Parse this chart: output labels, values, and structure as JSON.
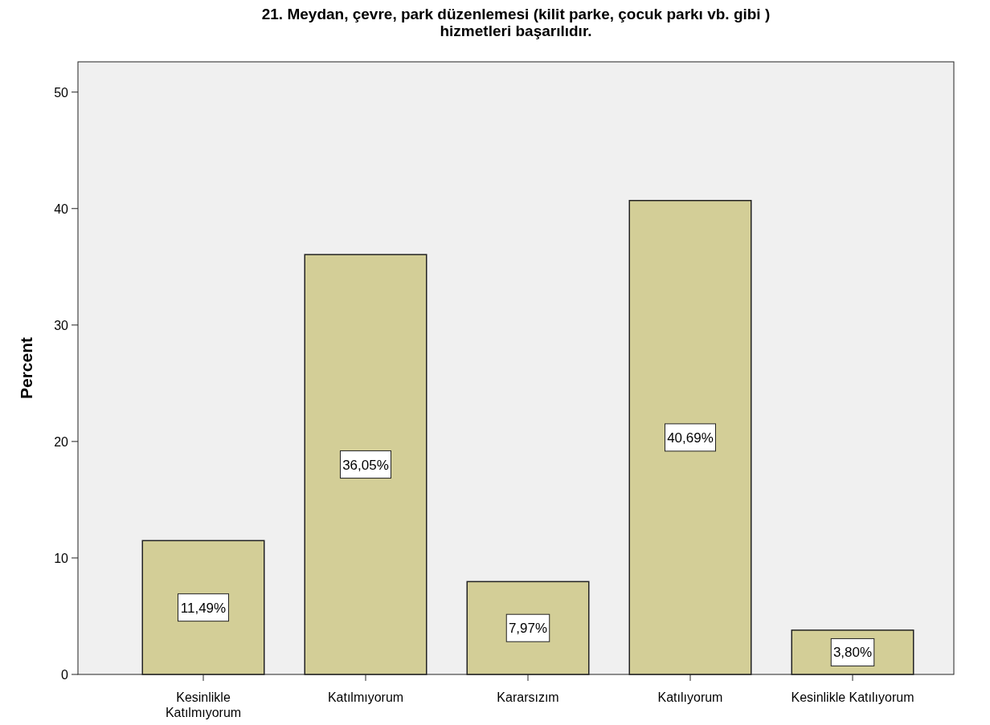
{
  "chart_data": {
    "type": "bar",
    "title": "21. Meydan, çevre, park düzenlemesi (kilit parke, çocuk parkı vb. gibi ) hizmetleri başarılıdır.",
    "ylabel": "Percent",
    "categories": [
      "Kesinlikle Katılmıyorum",
      "Katılmıyorum",
      "Kararsızım",
      "Katılıyorum",
      "Kesinlikle Katılıyorum"
    ],
    "values": [
      11.49,
      36.05,
      7.97,
      40.69,
      3.8
    ],
    "value_labels": [
      "11,49%",
      "36,05%",
      "7,97%",
      "40,69%",
      "3,80%"
    ],
    "color": "#d3ce97",
    "ylim": [
      0,
      52.6
    ],
    "yticks": [
      0,
      10,
      20,
      30,
      40,
      50
    ],
    "grid": false
  }
}
